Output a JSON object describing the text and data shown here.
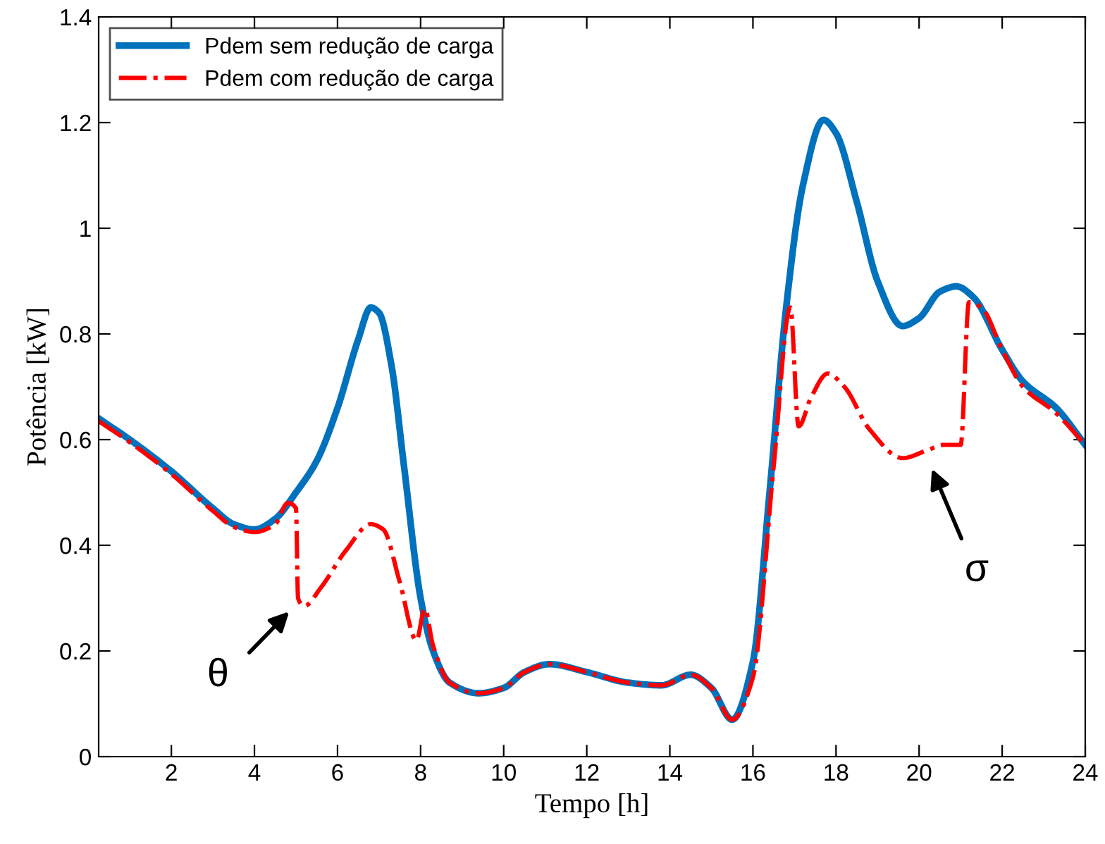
{
  "chart_data": {
    "type": "line",
    "xlabel": "Tempo [h]",
    "ylabel": "Potência [kW]",
    "xlim": [
      0.25,
      24
    ],
    "xticks": [
      2,
      4,
      6,
      8,
      10,
      12,
      14,
      16,
      18,
      20,
      22,
      24
    ],
    "ylim": [
      0,
      1.4
    ],
    "yticks": [
      0,
      0.2,
      0.4,
      0.6,
      0.8,
      1,
      1.2,
      1.4
    ],
    "grid": false,
    "legend": "top left",
    "series": [
      {
        "name": "Pdem sem redução de carga",
        "color": "#0072bd",
        "line_style": "solid",
        "x": [
          0.25,
          1,
          2,
          3,
          3.5,
          4,
          4.5,
          5,
          5.5,
          6,
          6.5,
          6.8,
          7,
          7.3,
          7.6,
          8,
          8.3,
          8.7,
          9.4,
          10,
          10.5,
          11.1,
          12,
          13,
          13.8,
          14.5,
          15,
          15.5,
          16,
          16.4,
          16.8,
          17.2,
          17.7,
          18,
          18.5,
          19,
          19.6,
          20,
          20.5,
          20.9,
          21.3,
          22,
          22.5,
          23.3,
          24
        ],
        "values": [
          0.64,
          0.6,
          0.54,
          0.47,
          0.44,
          0.43,
          0.45,
          0.5,
          0.56,
          0.66,
          0.79,
          0.85,
          0.84,
          0.74,
          0.55,
          0.3,
          0.2,
          0.14,
          0.12,
          0.13,
          0.16,
          0.175,
          0.16,
          0.14,
          0.135,
          0.155,
          0.13,
          0.07,
          0.18,
          0.5,
          0.85,
          1.08,
          1.205,
          1.18,
          1.05,
          0.9,
          0.815,
          0.83,
          0.88,
          0.89,
          0.87,
          0.77,
          0.71,
          0.66,
          0.59
        ]
      },
      {
        "name": "Pdem com redução de carga",
        "color": "#ff0000",
        "line_style": "dashdot",
        "x": [
          0.25,
          1,
          2,
          3,
          3.5,
          4,
          4.5,
          4.8,
          5.0,
          5.05,
          5.2,
          5.6,
          6.2,
          6.8,
          7.1,
          7.5,
          7.9,
          8.1,
          8.3,
          8.7,
          9.4,
          10,
          10.5,
          11.1,
          12,
          13,
          13.8,
          14.5,
          15,
          15.5,
          16,
          16.5,
          16.9,
          17.1,
          17.4,
          17.8,
          18.2,
          18.8,
          19.6,
          20.2,
          20.6,
          21,
          21.2,
          21.5,
          22,
          22.5,
          23.3,
          24
        ],
        "values": [
          0.635,
          0.595,
          0.535,
          0.465,
          0.435,
          0.425,
          0.44,
          0.48,
          0.47,
          0.3,
          0.285,
          0.32,
          0.39,
          0.44,
          0.43,
          0.33,
          0.22,
          0.28,
          0.21,
          0.14,
          0.12,
          0.13,
          0.16,
          0.175,
          0.16,
          0.14,
          0.135,
          0.155,
          0.13,
          0.07,
          0.15,
          0.55,
          0.85,
          0.625,
          0.68,
          0.725,
          0.7,
          0.62,
          0.565,
          0.58,
          0.59,
          0.59,
          0.86,
          0.85,
          0.77,
          0.7,
          0.65,
          0.59
        ]
      }
    ],
    "annotations": [
      "θ",
      "σ"
    ]
  }
}
